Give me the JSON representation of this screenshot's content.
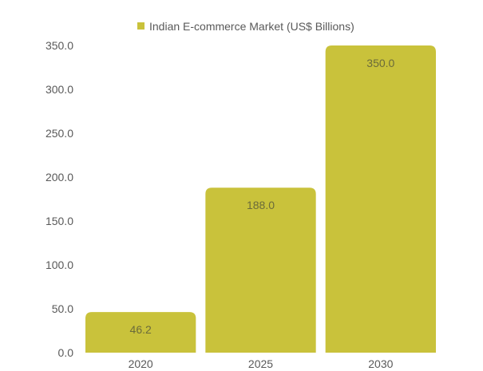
{
  "chart_data": {
    "type": "bar",
    "title": "",
    "xlabel": "",
    "ylabel": "",
    "categories": [
      "2020",
      "2025",
      "2030"
    ],
    "series": [
      {
        "name": "Indian E-commerce Market (US$ Billions)",
        "values": [
          46.2,
          188.0,
          350.0
        ],
        "value_labels": [
          "46.2",
          "188.0",
          "350.0"
        ],
        "color": "#c9c23b"
      }
    ],
    "ylim": [
      0,
      350
    ],
    "y_ticks": [
      "0.0",
      "50.0",
      "100.0",
      "150.0",
      "200.0",
      "250.0",
      "300.0",
      "350.0"
    ],
    "grid": false,
    "legend_position": "top"
  }
}
